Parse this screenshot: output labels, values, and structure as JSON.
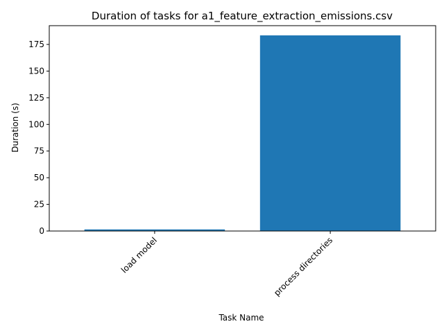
{
  "chart_data": {
    "type": "bar",
    "title": "Duration of tasks for a1_feature_extraction_emissions.csv",
    "xlabel": "Task Name",
    "ylabel": "Duration (s)",
    "categories": [
      "load model",
      "process directories"
    ],
    "values": [
      1.5,
      183.5
    ],
    "ylim": [
      0,
      192.6
    ],
    "yticks": [
      0,
      25,
      50,
      75,
      100,
      125,
      150,
      175
    ],
    "bar_color": "#1f77b4",
    "grid": false,
    "legend": "none"
  }
}
